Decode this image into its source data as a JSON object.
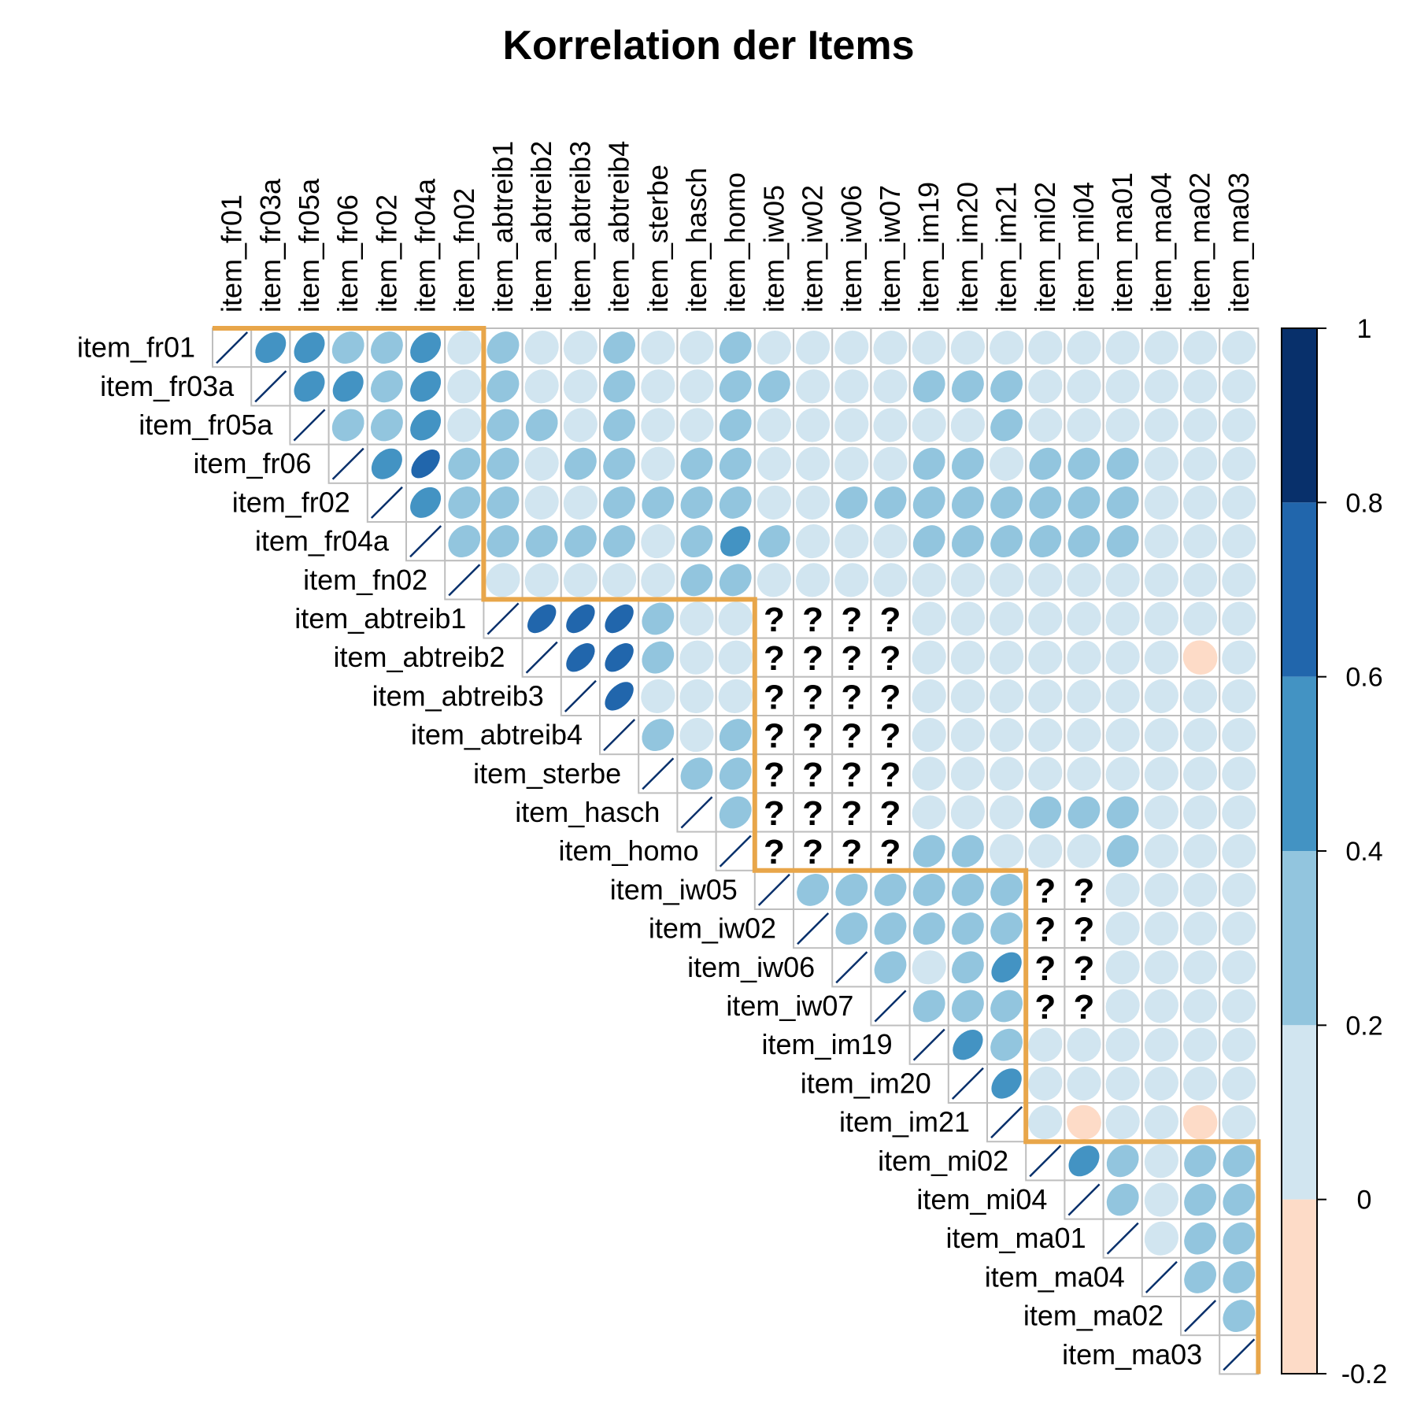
{
  "chart_data": {
    "type": "heatmap",
    "title": "Korrelation der Items",
    "variables": [
      "item_fr01",
      "item_fr03a",
      "item_fr05a",
      "item_fr06",
      "item_fr02",
      "item_fr04a",
      "item_fn02",
      "item_abtreib1",
      "item_abtreib2",
      "item_abtreib3",
      "item_abtreib4",
      "item_sterbe",
      "item_hasch",
      "item_homo",
      "item_iw05",
      "item_iw02",
      "item_iw06",
      "item_iw07",
      "item_im19",
      "item_im20",
      "item_im21",
      "item_mi02",
      "item_mi04",
      "item_ma01",
      "item_ma04",
      "item_ma02",
      "item_ma03"
    ],
    "matrix": [
      [
        1,
        0.45,
        0.45,
        0.3,
        0.3,
        0.45,
        0.1,
        0.3,
        0.1,
        0.1,
        0.3,
        0.1,
        0.1,
        0.3,
        0.1,
        0.1,
        0.1,
        0.1,
        0.1,
        0.1,
        0.1,
        0.1,
        0.1,
        0.1,
        0.1,
        0.1,
        0.1
      ],
      [
        null,
        1,
        0.45,
        0.45,
        0.3,
        0.45,
        0.1,
        0.3,
        0.1,
        0.1,
        0.3,
        0.1,
        0.1,
        0.3,
        0.3,
        0.1,
        0.1,
        0.1,
        0.3,
        0.3,
        0.3,
        0.1,
        0.1,
        0.1,
        0.1,
        0.1,
        0.1
      ],
      [
        null,
        null,
        1,
        0.3,
        0.3,
        0.45,
        0.1,
        0.3,
        0.3,
        0.1,
        0.3,
        0.1,
        0.1,
        0.3,
        0.1,
        0.1,
        0.1,
        0.1,
        0.1,
        0.1,
        0.3,
        0.1,
        0.1,
        0.1,
        0.1,
        0.1,
        0.1
      ],
      [
        null,
        null,
        null,
        1,
        0.45,
        0.65,
        0.3,
        0.3,
        0.1,
        0.3,
        0.3,
        0.1,
        0.3,
        0.3,
        0.1,
        0.1,
        0.1,
        0.1,
        0.3,
        0.3,
        0.1,
        0.3,
        0.3,
        0.3,
        0.1,
        0.1,
        0.1
      ],
      [
        null,
        null,
        null,
        null,
        1,
        0.45,
        0.3,
        0.3,
        0.1,
        0.1,
        0.3,
        0.3,
        0.3,
        0.3,
        0.1,
        0.1,
        0.3,
        0.3,
        0.3,
        0.3,
        0.3,
        0.3,
        0.3,
        0.3,
        0.1,
        0.1,
        0.1
      ],
      [
        null,
        null,
        null,
        null,
        null,
        1,
        0.3,
        0.3,
        0.3,
        0.3,
        0.3,
        0.1,
        0.3,
        0.5,
        0.3,
        0.1,
        0.1,
        0.1,
        0.3,
        0.3,
        0.3,
        0.3,
        0.3,
        0.3,
        0.1,
        0.1,
        0.1
      ],
      [
        null,
        null,
        null,
        null,
        null,
        null,
        1,
        0.1,
        0.1,
        0.1,
        0.1,
        0.1,
        0.3,
        0.3,
        0.1,
        0.1,
        0.1,
        0.1,
        0.1,
        0.1,
        0.1,
        0.1,
        0.1,
        0.1,
        0.1,
        0.1,
        0.1
      ],
      [
        null,
        null,
        null,
        null,
        null,
        null,
        null,
        1,
        0.65,
        0.65,
        0.65,
        0.3,
        0.1,
        0.1,
        "?",
        "?",
        "?",
        "?",
        0.1,
        0.1,
        0.1,
        0.1,
        0.1,
        0.1,
        0.1,
        0.1,
        0.1
      ],
      [
        null,
        null,
        null,
        null,
        null,
        null,
        null,
        null,
        1,
        0.65,
        0.65,
        0.3,
        0.1,
        0.1,
        "?",
        "?",
        "?",
        "?",
        0.1,
        0.1,
        0.1,
        0.1,
        0.1,
        0.1,
        0.1,
        -0.05,
        0.1
      ],
      [
        null,
        null,
        null,
        null,
        null,
        null,
        null,
        null,
        null,
        1,
        0.65,
        0.1,
        0.1,
        0.1,
        "?",
        "?",
        "?",
        "?",
        0.1,
        0.1,
        0.1,
        0.1,
        0.1,
        0.1,
        0.1,
        0.1,
        0.1
      ],
      [
        null,
        null,
        null,
        null,
        null,
        null,
        null,
        null,
        null,
        null,
        1,
        0.3,
        0.1,
        0.3,
        "?",
        "?",
        "?",
        "?",
        0.1,
        0.1,
        0.1,
        0.1,
        0.1,
        0.1,
        0.1,
        0.1,
        0.1
      ],
      [
        null,
        null,
        null,
        null,
        null,
        null,
        null,
        null,
        null,
        null,
        null,
        1,
        0.3,
        0.3,
        "?",
        "?",
        "?",
        "?",
        0.1,
        0.1,
        0.1,
        0.1,
        0.1,
        0.1,
        0.1,
        0.1,
        0.1
      ],
      [
        null,
        null,
        null,
        null,
        null,
        null,
        null,
        null,
        null,
        null,
        null,
        null,
        1,
        0.3,
        "?",
        "?",
        "?",
        "?",
        0.1,
        0.1,
        0.1,
        0.3,
        0.3,
        0.3,
        0.1,
        0.1,
        0.1
      ],
      [
        null,
        null,
        null,
        null,
        null,
        null,
        null,
        null,
        null,
        null,
        null,
        null,
        null,
        1,
        "?",
        "?",
        "?",
        "?",
        0.3,
        0.3,
        0.1,
        0.1,
        0.1,
        0.3,
        0.1,
        0.1,
        0.1
      ],
      [
        null,
        null,
        null,
        null,
        null,
        null,
        null,
        null,
        null,
        null,
        null,
        null,
        null,
        null,
        1,
        0.3,
        0.3,
        0.3,
        0.3,
        0.3,
        0.3,
        "?",
        "?",
        0.1,
        0.1,
        0.1,
        0.1
      ],
      [
        null,
        null,
        null,
        null,
        null,
        null,
        null,
        null,
        null,
        null,
        null,
        null,
        null,
        null,
        null,
        1,
        0.3,
        0.3,
        0.3,
        0.3,
        0.3,
        "?",
        "?",
        0.1,
        0.1,
        0.1,
        0.1
      ],
      [
        null,
        null,
        null,
        null,
        null,
        null,
        null,
        null,
        null,
        null,
        null,
        null,
        null,
        null,
        null,
        null,
        1,
        0.3,
        0.1,
        0.3,
        0.5,
        "?",
        "?",
        0.1,
        0.1,
        0.1,
        0.1
      ],
      [
        null,
        null,
        null,
        null,
        null,
        null,
        null,
        null,
        null,
        null,
        null,
        null,
        null,
        null,
        null,
        null,
        null,
        1,
        0.3,
        0.3,
        0.3,
        "?",
        "?",
        0.1,
        0.1,
        0.1,
        0.1
      ],
      [
        null,
        null,
        null,
        null,
        null,
        null,
        null,
        null,
        null,
        null,
        null,
        null,
        null,
        null,
        null,
        null,
        null,
        null,
        1,
        0.5,
        0.3,
        0.1,
        0.1,
        0.1,
        0.1,
        0.1,
        0.1
      ],
      [
        null,
        null,
        null,
        null,
        null,
        null,
        null,
        null,
        null,
        null,
        null,
        null,
        null,
        null,
        null,
        null,
        null,
        null,
        null,
        1,
        0.5,
        0.1,
        0.1,
        0.1,
        0.1,
        0.1,
        0.1
      ],
      [
        null,
        null,
        null,
        null,
        null,
        null,
        null,
        null,
        null,
        null,
        null,
        null,
        null,
        null,
        null,
        null,
        null,
        null,
        null,
        null,
        1,
        0.1,
        -0.05,
        0.1,
        0.1,
        -0.05,
        0.1
      ],
      [
        null,
        null,
        null,
        null,
        null,
        null,
        null,
        null,
        null,
        null,
        null,
        null,
        null,
        null,
        null,
        null,
        null,
        null,
        null,
        null,
        null,
        1,
        0.45,
        0.3,
        0.1,
        0.3,
        0.3
      ],
      [
        null,
        null,
        null,
        null,
        null,
        null,
        null,
        null,
        null,
        null,
        null,
        null,
        null,
        null,
        null,
        null,
        null,
        null,
        null,
        null,
        null,
        null,
        1,
        0.3,
        0.1,
        0.3,
        0.3
      ],
      [
        null,
        null,
        null,
        null,
        null,
        null,
        null,
        null,
        null,
        null,
        null,
        null,
        null,
        null,
        null,
        null,
        null,
        null,
        null,
        null,
        null,
        null,
        null,
        1,
        0.1,
        0.3,
        0.3
      ],
      [
        null,
        null,
        null,
        null,
        null,
        null,
        null,
        null,
        null,
        null,
        null,
        null,
        null,
        null,
        null,
        null,
        null,
        null,
        null,
        null,
        null,
        null,
        null,
        null,
        1,
        0.3,
        0.3
      ],
      [
        null,
        null,
        null,
        null,
        null,
        null,
        null,
        null,
        null,
        null,
        null,
        null,
        null,
        null,
        null,
        null,
        null,
        null,
        null,
        null,
        null,
        null,
        null,
        null,
        null,
        1,
        0.3
      ],
      [
        null,
        null,
        null,
        null,
        null,
        null,
        null,
        null,
        null,
        null,
        null,
        null,
        null,
        null,
        null,
        null,
        null,
        null,
        null,
        null,
        null,
        null,
        null,
        null,
        null,
        null,
        1
      ]
    ],
    "missing_marker": "?",
    "blocks": [
      [
        0,
        6
      ],
      [
        7,
        13
      ],
      [
        14,
        20
      ],
      [
        21,
        26
      ]
    ],
    "colorbar": {
      "range": [
        -0.2,
        1
      ],
      "ticks": [
        "1",
        "0.8",
        "0.6",
        "0.4",
        "0.2",
        "0",
        "-0.2"
      ],
      "bands": [
        {
          "from": 0.8,
          "to": 1.0,
          "color": "#08306B"
        },
        {
          "from": 0.6,
          "to": 0.8,
          "color": "#2166AC"
        },
        {
          "from": 0.4,
          "to": 0.6,
          "color": "#4393C3"
        },
        {
          "from": 0.2,
          "to": 0.4,
          "color": "#92C5DE"
        },
        {
          "from": 0.0,
          "to": 0.2,
          "color": "#D1E5F0"
        },
        {
          "from": -0.2,
          "to": 0.0,
          "color": "#FDDBC7"
        }
      ]
    },
    "colors": {
      "block_outline": "#E8A64A",
      "grid": "#BEBEBE",
      "diagonal": "#08306B"
    }
  }
}
